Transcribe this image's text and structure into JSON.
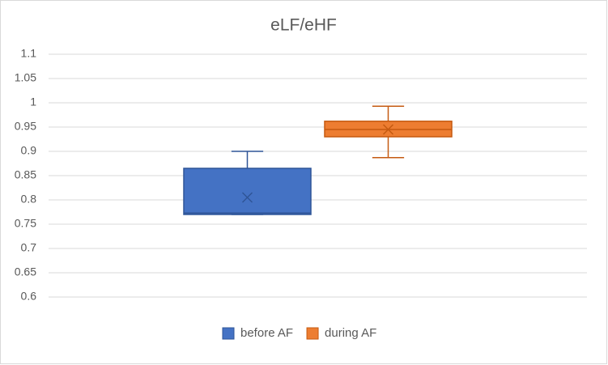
{
  "chart_data": {
    "type": "box",
    "title": "eLF/eHF",
    "ylim": [
      0.6,
      1.1
    ],
    "yticks": [
      0.6,
      0.65,
      0.7,
      0.75,
      0.8,
      0.85,
      0.9,
      0.95,
      1,
      1.05,
      1.1
    ],
    "grid": true,
    "legend": "bottom",
    "series": [
      {
        "name": "before AF",
        "color": "#4472c4",
        "edge": "#2f5597",
        "min": 0.77,
        "q1": 0.77,
        "median": 0.773,
        "q3": 0.865,
        "max": 0.9,
        "mean": 0.805
      },
      {
        "name": "during AF",
        "color": "#ed7d31",
        "edge": "#c55a11",
        "min": 0.887,
        "q1": 0.93,
        "median": 0.945,
        "q3": 0.962,
        "max": 0.993,
        "mean": 0.945
      }
    ]
  }
}
